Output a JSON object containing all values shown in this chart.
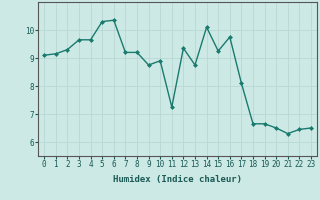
{
  "xlabel": "Humidex (Indice chaleur)",
  "x": [
    0,
    1,
    2,
    3,
    4,
    5,
    6,
    7,
    8,
    9,
    10,
    11,
    12,
    13,
    14,
    15,
    16,
    17,
    18,
    19,
    20,
    21,
    22,
    23
  ],
  "y": [
    9.1,
    9.15,
    9.3,
    9.65,
    9.65,
    10.3,
    10.35,
    9.2,
    9.2,
    8.75,
    8.9,
    7.25,
    9.35,
    8.75,
    10.1,
    9.25,
    9.75,
    8.1,
    6.65,
    6.65,
    6.5,
    6.3,
    6.45,
    6.5
  ],
  "line_color": "#1a7a6e",
  "marker": "D",
  "marker_size": 2.0,
  "line_width": 1.0,
  "bg_color": "#cce9e5",
  "grid_color": "#b8d8d4",
  "ylim": [
    5.5,
    11.0
  ],
  "yticks": [
    6,
    7,
    8,
    9,
    10
  ],
  "xlim": [
    -0.5,
    23.5
  ],
  "label_fontsize": 6.5,
  "tick_fontsize": 5.5
}
